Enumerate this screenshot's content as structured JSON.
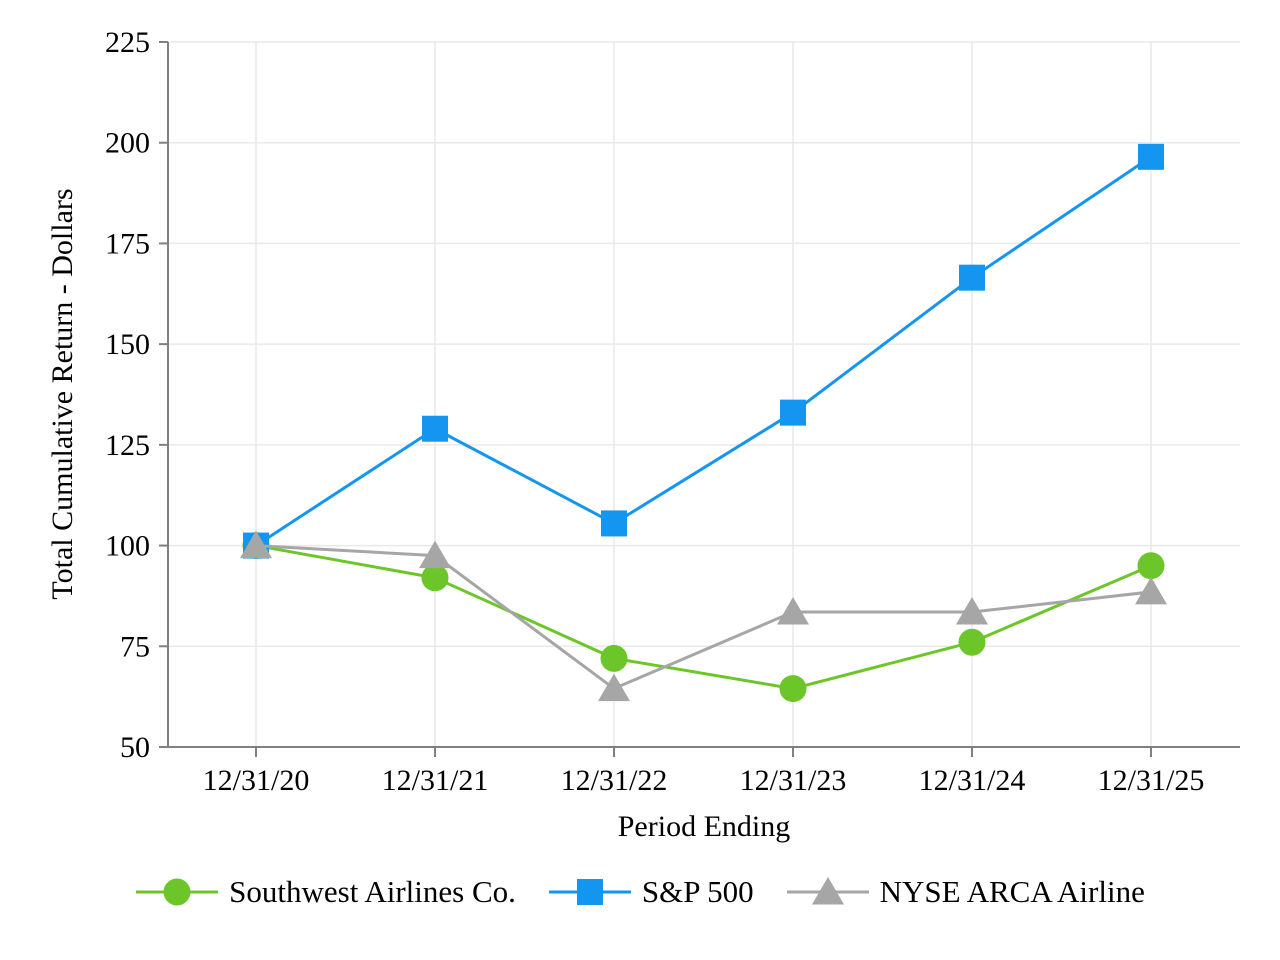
{
  "chart_data": {
    "type": "line",
    "title": "",
    "xlabel": "Period Ending",
    "ylabel": "Total Cumulative Return - Dollars",
    "categories": [
      "12/31/20",
      "12/31/21",
      "12/31/22",
      "12/31/23",
      "12/31/24",
      "12/31/25"
    ],
    "y_ticks": [
      50,
      75,
      100,
      125,
      150,
      175,
      200,
      225
    ],
    "ylim": [
      50,
      225
    ],
    "grid": true,
    "legend_position": "bottom",
    "series": [
      {
        "name": "Southwest Airlines Co.",
        "marker": "circle",
        "color": "#6CC62A",
        "values": [
          100,
          92,
          72,
          64.5,
          76,
          95
        ]
      },
      {
        "name": "S&P 500",
        "marker": "square",
        "color": "#1496F0",
        "values": [
          100,
          129,
          105.5,
          133,
          166.5,
          196.5
        ]
      },
      {
        "name": "NYSE ARCA Airline",
        "marker": "triangle",
        "color": "#A6A6A6",
        "values": [
          100,
          97.5,
          64.5,
          83.5,
          83.5,
          88.5
        ]
      }
    ],
    "axis_color": "#808080",
    "gridline_color": "#E9E9E9",
    "text_color": "#000000",
    "background_color": "#FFFFFF"
  }
}
